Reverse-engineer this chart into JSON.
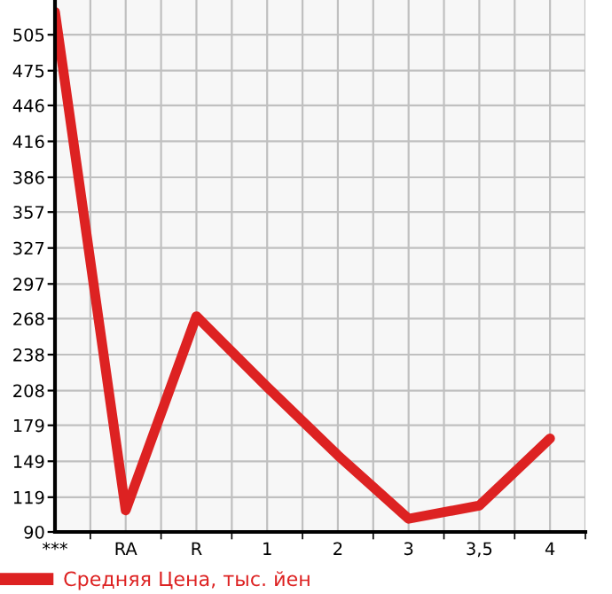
{
  "chart_data": {
    "type": "line",
    "categories": [
      "***",
      "RA",
      "R",
      "1",
      "2",
      "3",
      "3,5",
      "4"
    ],
    "series": [
      {
        "name": "Средняя Цена, тыс. йен",
        "color": "#dd2222",
        "values": [
          524,
          108,
          270,
          211,
          154,
          101,
          112,
          168
        ]
      }
    ],
    "ylim": [
      90,
      534
    ],
    "yticks": [
      90,
      119,
      149,
      179,
      208,
      238,
      268,
      297,
      327,
      357,
      386,
      416,
      446,
      475,
      505
    ],
    "grid": true,
    "legend": "bottom",
    "marker": "none",
    "line_style": "solid"
  }
}
